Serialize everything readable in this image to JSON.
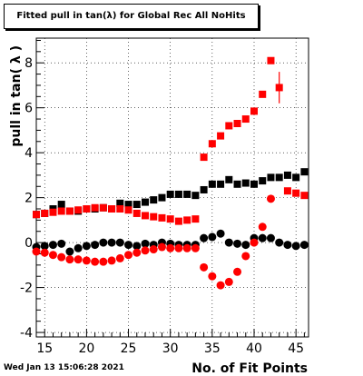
{
  "header": {
    "title": "Fitted pull in tan(λ) for Global Rec All NoHits"
  },
  "footer": {
    "timestamp": "Wed Jan 13 15:06:28 2021"
  },
  "chart_data": {
    "type": "scatter",
    "title": "Fitted pull in tan(λ) for Global Rec All NoHits",
    "xlabel": "No. of Fit Points",
    "ylabel": "pull in tan( λ )",
    "xlim": [
      14,
      46.5
    ],
    "ylim": [
      -4.2,
      9.1
    ],
    "x_ticks": [
      15,
      20,
      25,
      30,
      35,
      40,
      45
    ],
    "y_ticks": [
      -4,
      -2,
      0,
      2,
      4,
      6,
      8
    ],
    "grid": true,
    "series": [
      {
        "color": "#000000",
        "marker": "square",
        "x": [
          14,
          15,
          16,
          17,
          18,
          19,
          20,
          21,
          22,
          23,
          24,
          25,
          26,
          27,
          28,
          29,
          30,
          31,
          32,
          33,
          34,
          35,
          36,
          37,
          38,
          39,
          40,
          41,
          42,
          43,
          44,
          45,
          46
        ],
        "values": [
          1.25,
          1.3,
          1.5,
          1.7,
          1.4,
          1.4,
          1.5,
          1.5,
          1.55,
          1.5,
          1.75,
          1.7,
          1.7,
          1.8,
          1.9,
          2.0,
          2.15,
          2.15,
          2.15,
          2.1,
          2.35,
          2.6,
          2.6,
          2.8,
          2.6,
          2.65,
          2.6,
          2.75,
          2.9,
          2.9,
          3.0,
          2.9,
          3.15
        ]
      },
      {
        "color": "#ff0000",
        "marker": "square",
        "x": [
          14,
          15,
          16,
          17,
          18,
          19,
          20,
          21,
          22,
          23,
          24,
          25,
          26,
          27,
          28,
          29,
          30,
          31,
          32,
          33,
          34,
          35,
          36,
          37,
          38,
          39,
          40,
          41,
          42,
          43,
          44,
          45,
          46
        ],
        "values": [
          1.25,
          1.3,
          1.35,
          1.4,
          1.4,
          1.45,
          1.5,
          1.55,
          1.55,
          1.5,
          1.5,
          1.45,
          1.3,
          1.2,
          1.15,
          1.1,
          1.05,
          0.95,
          1.0,
          1.05,
          3.8,
          4.4,
          4.75,
          5.2,
          5.3,
          5.5,
          5.85,
          6.6,
          8.1,
          6.9,
          2.3,
          2.2,
          2.1
        ],
        "errors": [
          0,
          0,
          0,
          0,
          0,
          0,
          0,
          0,
          0,
          0,
          0,
          0,
          0,
          0,
          0,
          0,
          0,
          0,
          0,
          0,
          0,
          0,
          0,
          0,
          0,
          0,
          0,
          0,
          0,
          0.7,
          0,
          0,
          0
        ]
      },
      {
        "color": "#000000",
        "marker": "circle",
        "x": [
          14,
          15,
          16,
          17,
          18,
          19,
          20,
          21,
          22,
          23,
          24,
          25,
          26,
          27,
          28,
          29,
          30,
          31,
          32,
          33,
          34,
          35,
          36,
          37,
          38,
          39,
          40,
          41,
          42,
          43,
          44,
          45,
          46
        ],
        "values": [
          -0.2,
          -0.15,
          -0.1,
          -0.05,
          -0.4,
          -0.25,
          -0.15,
          -0.1,
          0.0,
          0.0,
          0.0,
          -0.1,
          -0.15,
          -0.05,
          -0.1,
          0.0,
          -0.05,
          -0.1,
          -0.1,
          -0.1,
          0.2,
          0.25,
          0.4,
          0.0,
          -0.05,
          -0.1,
          0.2,
          0.2,
          0.2,
          0.0,
          -0.1,
          -0.15,
          -0.1
        ]
      },
      {
        "color": "#ff0000",
        "marker": "circle",
        "x": [
          14,
          15,
          16,
          17,
          18,
          19,
          20,
          21,
          22,
          23,
          24,
          25,
          26,
          27,
          28,
          29,
          30,
          31,
          32,
          33,
          34,
          35,
          36,
          37,
          38,
          39,
          40,
          41,
          42,
          43,
          44,
          45,
          46
        ],
        "values": [
          -0.4,
          -0.45,
          -0.55,
          -0.65,
          -0.75,
          -0.75,
          -0.8,
          -0.85,
          -0.85,
          -0.8,
          -0.7,
          -0.55,
          -0.45,
          -0.35,
          -0.3,
          -0.2,
          -0.25,
          -0.25,
          -0.25,
          -0.25,
          -1.1,
          -1.5,
          -1.9,
          -1.75,
          -1.3,
          -0.6,
          0.0,
          0.7,
          1.95,
          null,
          null,
          null,
          null
        ]
      }
    ]
  }
}
